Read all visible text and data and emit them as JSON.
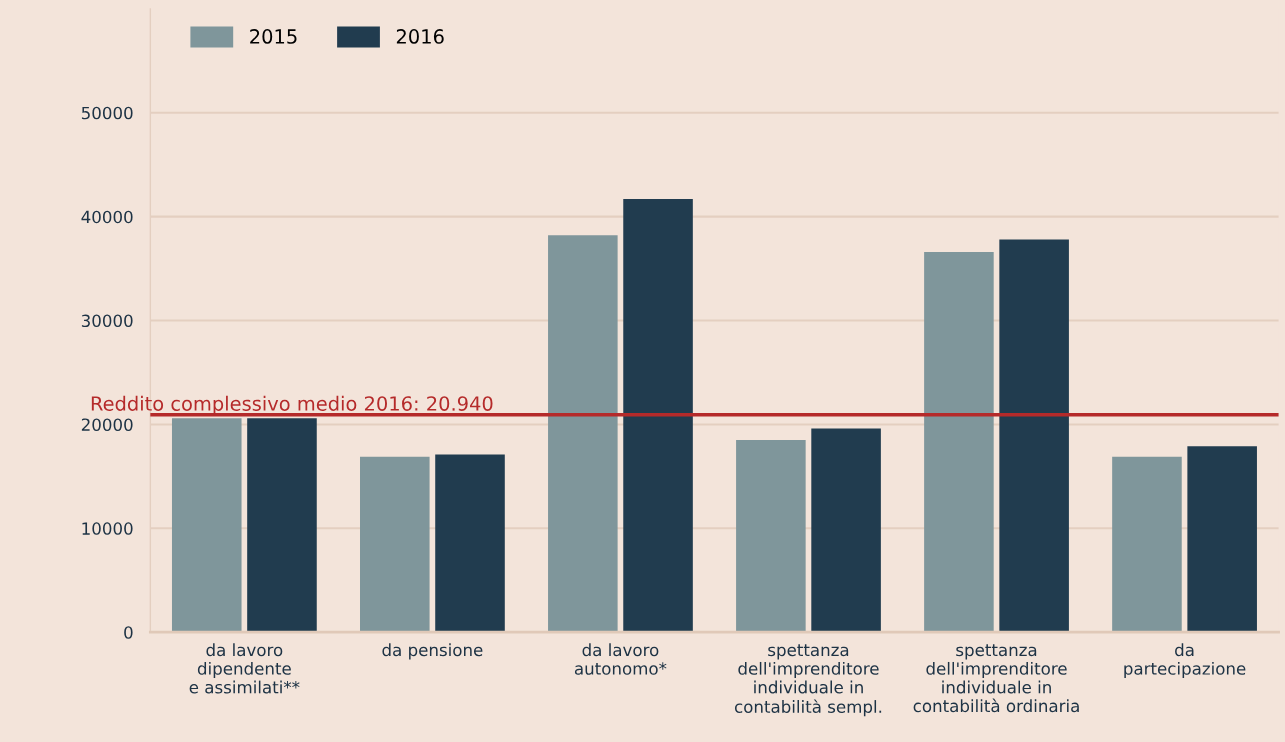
{
  "chart_data": {
    "type": "bar",
    "categories": [
      "da lavoro\ndipendente\ne assimilati**",
      "da pensione",
      "da lavoro\nautonomo*",
      "spettanza\ndell'imprenditore\nindividuale in\ncontabilità sempl.",
      "spettanza\ndell'imprenditore\nindividuale in\ncontabilità ordinaria",
      "da\npartecipazione"
    ],
    "series": [
      {
        "name": "2015",
        "color": "#7f969b",
        "values": [
          20600,
          16900,
          38200,
          18500,
          36600,
          16900
        ]
      },
      {
        "name": "2016",
        "color": "#213c4f",
        "values": [
          20600,
          17100,
          41700,
          19600,
          37800,
          17900
        ]
      }
    ],
    "ylim": [
      0,
      60000
    ],
    "yticks": [
      0,
      10000,
      20000,
      30000,
      40000,
      50000
    ],
    "ref_lines": [
      {
        "axis": "y",
        "value": 20940,
        "label": "Reddito complessivo medio 2016: 20.940",
        "color": "#b52a2a",
        "line_style": "solid"
      }
    ],
    "grid": "y",
    "legend": "top left"
  }
}
